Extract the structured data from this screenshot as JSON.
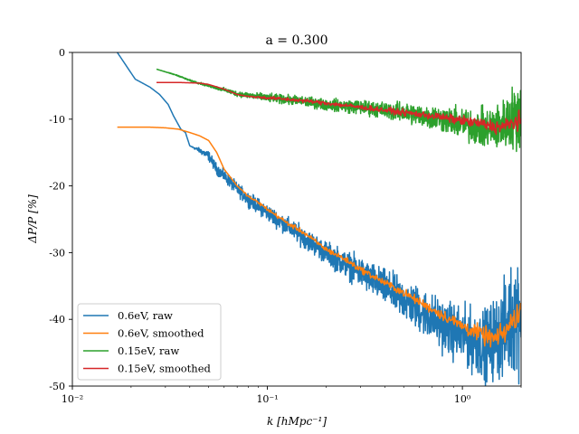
{
  "chart_data": {
    "type": "line",
    "title": "a = 0.300",
    "xlabel": "k [hMpc⁻¹]",
    "ylabel": "ΔP/P [%]",
    "xscale": "log",
    "xlim": [
      0.01,
      2.0
    ],
    "ylim": [
      -50,
      0
    ],
    "x_ticks": [
      {
        "value": 0.01,
        "label": "10⁻²"
      },
      {
        "value": 0.1,
        "label": "10⁻¹"
      },
      {
        "value": 1,
        "label": "10⁰"
      }
    ],
    "y_ticks": [
      {
        "value": 0,
        "label": "0"
      },
      {
        "value": -10,
        "label": "-10"
      },
      {
        "value": -20,
        "label": "-20"
      },
      {
        "value": -30,
        "label": "-30"
      },
      {
        "value": -40,
        "label": "-40"
      },
      {
        "value": -50,
        "label": "-50"
      }
    ],
    "grid": false,
    "legend_position": "lower-left",
    "series": [
      {
        "name": "0.6eV, raw",
        "color": "#1f77b4",
        "noisy": true,
        "points": [
          [
            0.0165,
            1.0
          ],
          [
            0.017,
            0.0
          ],
          [
            0.021,
            -4.0
          ],
          [
            0.025,
            -5.2
          ],
          [
            0.028,
            -6.3
          ],
          [
            0.031,
            -7.8
          ],
          [
            0.033,
            -9.5
          ],
          [
            0.036,
            -11.5
          ],
          [
            0.038,
            -12.0
          ],
          [
            0.04,
            -14.0
          ],
          [
            0.045,
            -14.7
          ],
          [
            0.05,
            -15.5
          ],
          [
            0.055,
            -17.5
          ],
          [
            0.06,
            -18.5
          ],
          [
            0.07,
            -20.5
          ],
          [
            0.08,
            -22.0
          ],
          [
            0.1,
            -24.0
          ],
          [
            0.15,
            -27.5
          ],
          [
            0.2,
            -30.0
          ],
          [
            0.3,
            -33.0
          ],
          [
            0.5,
            -37.0
          ],
          [
            0.8,
            -41.0
          ],
          [
            1.0,
            -42.5
          ],
          [
            1.3,
            -44.0
          ],
          [
            1.6,
            -42.0
          ],
          [
            2.0,
            -38.0
          ]
        ],
        "noise_points": [
          [
            0.0165,
            0.0
          ],
          [
            0.04,
            0.0
          ],
          [
            0.05,
            0.6
          ],
          [
            0.1,
            1.0
          ],
          [
            0.2,
            1.4
          ],
          [
            0.4,
            2.2
          ],
          [
            0.8,
            3.2
          ],
          [
            1.2,
            4.0
          ],
          [
            1.6,
            5.5
          ],
          [
            2.0,
            8.0
          ]
        ]
      },
      {
        "name": "0.6eV, smoothed",
        "color": "#ff7f0e",
        "noisy": false,
        "points": [
          [
            0.017,
            -11.2
          ],
          [
            0.025,
            -11.2
          ],
          [
            0.03,
            -11.3
          ],
          [
            0.035,
            -11.5
          ],
          [
            0.04,
            -12.0
          ],
          [
            0.045,
            -12.5
          ],
          [
            0.05,
            -13.2
          ],
          [
            0.055,
            -15.0
          ],
          [
            0.06,
            -17.5
          ],
          [
            0.065,
            -18.8
          ],
          [
            0.07,
            -20.0
          ],
          [
            0.08,
            -21.6
          ],
          [
            0.09,
            -22.5
          ],
          [
            0.1,
            -23.5
          ],
          [
            0.13,
            -25.8
          ],
          [
            0.15,
            -26.8
          ],
          [
            0.2,
            -29.5
          ],
          [
            0.25,
            -31.0
          ],
          [
            0.3,
            -32.5
          ],
          [
            0.4,
            -34.5
          ],
          [
            0.5,
            -36.0
          ],
          [
            0.7,
            -38.5
          ],
          [
            1.0,
            -41.0
          ],
          [
            1.3,
            -42.5
          ],
          [
            1.5,
            -43.0
          ],
          [
            1.7,
            -41.5
          ],
          [
            2.0,
            -38.5
          ]
        ],
        "noise_points": [
          [
            0.017,
            0.0
          ],
          [
            0.06,
            0.0
          ],
          [
            0.1,
            0.25
          ],
          [
            0.3,
            0.4
          ],
          [
            0.7,
            0.6
          ],
          [
            1.0,
            0.9
          ],
          [
            1.5,
            1.3
          ],
          [
            2.0,
            1.8
          ]
        ]
      },
      {
        "name": "0.15eV, raw",
        "color": "#2ca02c",
        "noisy": true,
        "points": [
          [
            0.027,
            -2.5
          ],
          [
            0.035,
            -3.5
          ],
          [
            0.04,
            -4.2
          ],
          [
            0.05,
            -5.0
          ],
          [
            0.06,
            -5.6
          ],
          [
            0.07,
            -6.2
          ],
          [
            0.1,
            -6.8
          ],
          [
            0.15,
            -7.3
          ],
          [
            0.2,
            -7.8
          ],
          [
            0.3,
            -8.2
          ],
          [
            0.5,
            -9.0
          ],
          [
            0.8,
            -10.0
          ],
          [
            1.0,
            -10.7
          ],
          [
            1.3,
            -11.5
          ],
          [
            1.6,
            -11.0
          ],
          [
            2.0,
            -9.0
          ]
        ],
        "noise_points": [
          [
            0.027,
            0.0
          ],
          [
            0.05,
            0.15
          ],
          [
            0.1,
            0.5
          ],
          [
            0.2,
            0.7
          ],
          [
            0.4,
            1.0
          ],
          [
            0.8,
            1.6
          ],
          [
            1.2,
            2.2
          ],
          [
            1.6,
            3.0
          ],
          [
            2.0,
            4.5
          ]
        ]
      },
      {
        "name": "0.15eV, smoothed",
        "color": "#d62728",
        "noisy": false,
        "points": [
          [
            0.027,
            -4.5
          ],
          [
            0.035,
            -4.5
          ],
          [
            0.045,
            -4.6
          ],
          [
            0.05,
            -4.8
          ],
          [
            0.06,
            -5.5
          ],
          [
            0.07,
            -6.3
          ],
          [
            0.08,
            -6.6
          ],
          [
            0.1,
            -6.8
          ],
          [
            0.15,
            -7.2
          ],
          [
            0.2,
            -7.6
          ],
          [
            0.3,
            -8.2
          ],
          [
            0.5,
            -9.0
          ],
          [
            0.7,
            -9.5
          ],
          [
            1.0,
            -10.2
          ],
          [
            1.3,
            -10.8
          ],
          [
            1.5,
            -11.2
          ],
          [
            1.7,
            -11.0
          ],
          [
            2.0,
            -10.0
          ]
        ],
        "noise_points": [
          [
            0.027,
            0.0
          ],
          [
            0.07,
            0.0
          ],
          [
            0.1,
            0.2
          ],
          [
            0.3,
            0.3
          ],
          [
            0.8,
            0.5
          ],
          [
            1.2,
            0.7
          ],
          [
            1.6,
            0.9
          ],
          [
            2.0,
            1.3
          ]
        ]
      }
    ]
  }
}
